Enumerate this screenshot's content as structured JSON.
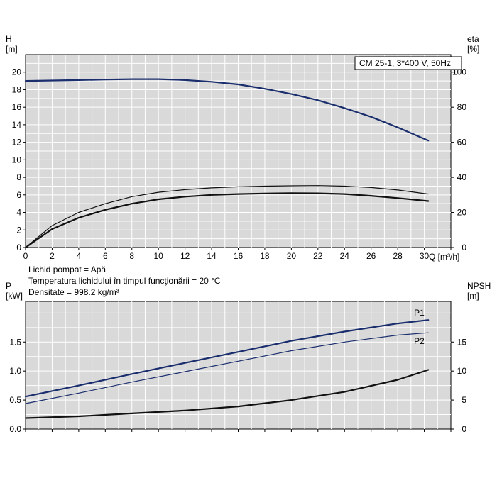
{
  "colors": {
    "plot_bg": "#d9d9d9",
    "grid": "#ffffff",
    "dark_blue": "#1a2e6e",
    "black": "#111111"
  },
  "chart_data": [
    {
      "type": "line",
      "title": "CM 25-1, 3*400 V, 50Hz",
      "xlabel": "Q [m³/h]",
      "ylabel_left": "H\n[m]",
      "ylabel_right": "eta\n[%]",
      "xlim": [
        0,
        32
      ],
      "ylim_left": [
        0,
        22
      ],
      "ylim_right": [
        0,
        110
      ],
      "grid": true,
      "x_ticks": [
        "0",
        "2",
        "4",
        "6",
        "8",
        "10",
        "12",
        "14",
        "16",
        "18",
        "20",
        "22",
        "24",
        "26",
        "28",
        "30"
      ],
      "left_ticks": [
        "0",
        "2",
        "4",
        "6",
        "8",
        "10",
        "12",
        "14",
        "16",
        "18",
        "20"
      ],
      "right_ticks": [
        "0",
        "20",
        "40",
        "60",
        "80",
        "100"
      ],
      "series": [
        {
          "name": "H",
          "axis": "left",
          "color": "#1a2e6e",
          "width": 2.2,
          "x": [
            0,
            2,
            4,
            6,
            8,
            10,
            12,
            14,
            16,
            18,
            20,
            22,
            24,
            26,
            28,
            30.3
          ],
          "y": [
            19.0,
            19.05,
            19.1,
            19.15,
            19.2,
            19.2,
            19.1,
            18.9,
            18.6,
            18.1,
            17.5,
            16.8,
            15.9,
            14.9,
            13.7,
            12.2
          ]
        },
        {
          "name": "",
          "axis": "right",
          "color": "#111111",
          "width": 1.2,
          "x": [
            0,
            2,
            4,
            6,
            8,
            10,
            12,
            14,
            16,
            18,
            20,
            22,
            24,
            26,
            28,
            30.3
          ],
          "y": [
            0,
            12.5,
            20,
            25,
            29,
            31.5,
            33,
            34,
            34.6,
            35,
            35.2,
            35.3,
            35,
            34.2,
            32.8,
            30.5
          ]
        },
        {
          "name": "",
          "axis": "right",
          "color": "#111111",
          "width": 2.2,
          "x": [
            0,
            2,
            4,
            6,
            8,
            10,
            12,
            14,
            16,
            18,
            20,
            22,
            24,
            26,
            28,
            30.3
          ],
          "y": [
            0,
            10.5,
            17,
            21.5,
            25,
            27.5,
            29,
            30,
            30.5,
            30.8,
            31,
            30.9,
            30.5,
            29.5,
            28.2,
            26.5
          ]
        }
      ]
    },
    {
      "type": "line",
      "xlabel": "",
      "ylabel_left": "P\n[kW]",
      "ylabel_right": "NPSH\n[m]",
      "xlim": [
        0,
        32
      ],
      "ylim_left": [
        0,
        2.2
      ],
      "ylim_right": [
        0,
        22
      ],
      "grid": true,
      "left_ticks": [
        "0.0",
        "0.5",
        "1.0",
        "1.5"
      ],
      "right_ticks": [
        "0",
        "5",
        "10",
        "15"
      ],
      "series": [
        {
          "name": "P1",
          "axis": "left",
          "color": "#1a2e6e",
          "width": 2.2,
          "x": [
            0,
            4,
            8,
            12,
            16,
            20,
            24,
            28,
            30.3
          ],
          "y": [
            0.56,
            0.75,
            0.95,
            1.14,
            1.33,
            1.52,
            1.68,
            1.82,
            1.88
          ]
        },
        {
          "name": "P2",
          "axis": "left",
          "color": "#1a2e6e",
          "width": 1.2,
          "x": [
            0,
            4,
            8,
            12,
            16,
            20,
            24,
            28,
            30.3
          ],
          "y": [
            0.44,
            0.62,
            0.81,
            0.99,
            1.17,
            1.35,
            1.5,
            1.62,
            1.66
          ]
        },
        {
          "name": "",
          "axis": "right",
          "color": "#111111",
          "width": 2.2,
          "x": [
            0,
            4,
            8,
            12,
            16,
            20,
            24,
            28,
            30.3
          ],
          "y": [
            1.9,
            2.2,
            2.7,
            3.2,
            3.9,
            5.0,
            6.4,
            8.5,
            10.2
          ]
        }
      ]
    }
  ],
  "notes": [
    "Lichid pompat = Apă",
    "Temperatura lichidului în timpul funcţionării = 20 °C",
    "Densitate = 998.2 kg/m³"
  ]
}
